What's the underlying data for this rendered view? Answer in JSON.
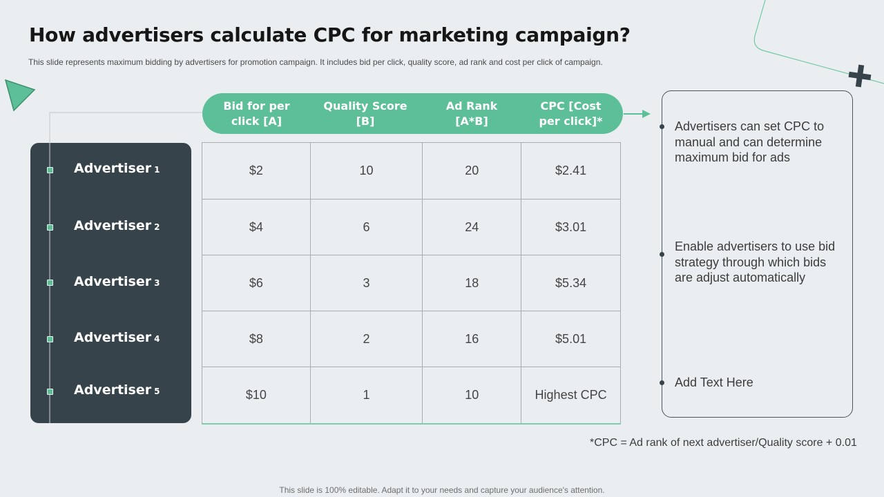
{
  "slide": {
    "title": "How advertisers calculate CPC for marketing campaign?",
    "subtitle": "This slide represents maximum bidding by advertisers for promotion campaign. It includes bid per click, quality score, ad rank and cost per click of campaign.",
    "footer": "This slide is 100% editable. Adapt it to your needs and capture your audience's attention."
  },
  "advertisers": [
    {
      "name": "Advertiser",
      "num": "1"
    },
    {
      "name": "Advertiser",
      "num": "2"
    },
    {
      "name": "Advertiser",
      "num": "3"
    },
    {
      "name": "Advertiser",
      "num": "4"
    },
    {
      "name": "Advertiser",
      "num": "5"
    }
  ],
  "table": {
    "headers": [
      {
        "line1": "Bid for per",
        "line2": "click [A]"
      },
      {
        "line1": "Quality Score",
        "line2": "[B]"
      },
      {
        "line1": "Ad Rank",
        "line2": "[A*B]"
      },
      {
        "line1": "CPC [Cost",
        "line2": "per click]*"
      }
    ],
    "rows": [
      [
        "$2",
        "10",
        "20",
        "$2.41"
      ],
      [
        "$4",
        "6",
        "24",
        "$3.01"
      ],
      [
        "$6",
        "3",
        "18",
        "$5.34"
      ],
      [
        "$8",
        "2",
        "16",
        "$5.01"
      ],
      [
        "$10",
        "1",
        "10",
        "Highest CPC"
      ]
    ]
  },
  "notes": [
    "Advertisers can set CPC to manual and can determine maximum bid for ads",
    "Enable advertisers to use bid strategy through which bids are adjust automatically",
    "Add Text Here"
  ],
  "footnote": "*CPC = Ad rank of next advertiser/Quality  score + 0.01",
  "colors": {
    "accent_green": "#5dbf98",
    "panel_dark": "#37434b",
    "background": "#ebeef0"
  }
}
